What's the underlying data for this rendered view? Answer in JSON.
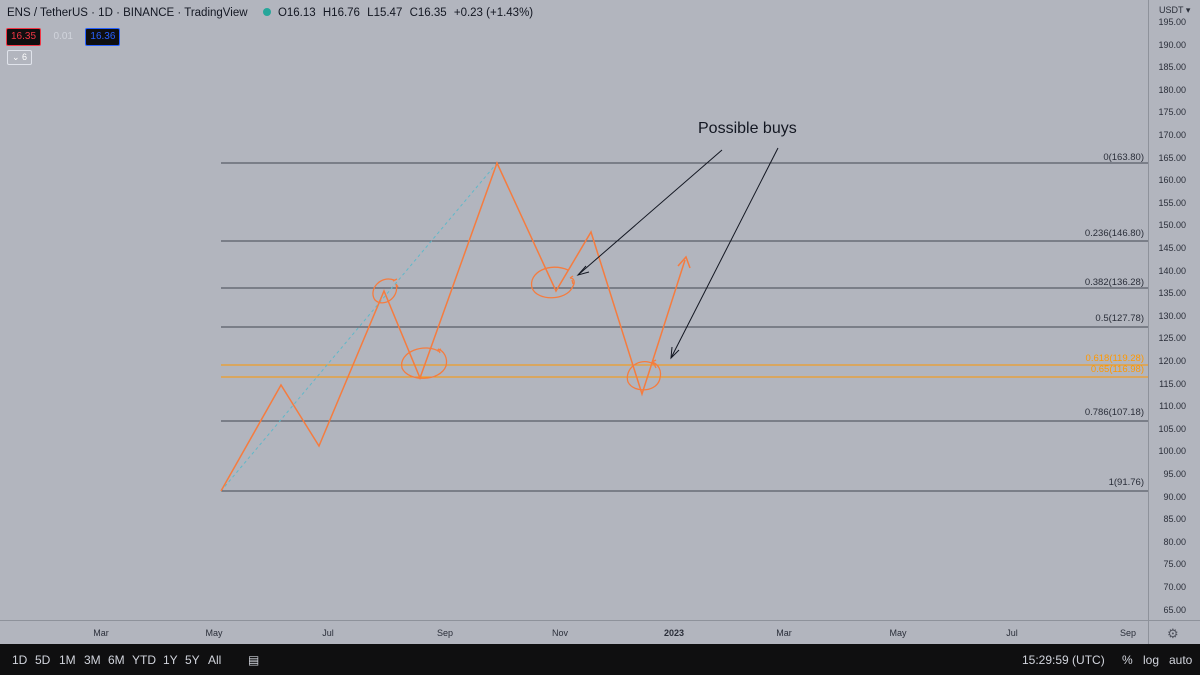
{
  "legend": {
    "symbol": "ENS / TetherUS · 1D · BINANCE · TradingView",
    "open": "O16.13",
    "high": "H16.76",
    "low": "L15.47",
    "close": "C16.35",
    "change": "+0.23 (+1.43%)",
    "status_color": "#26a69a"
  },
  "badges": {
    "sell": "16.35",
    "spread": "0.01",
    "buy": "16.36",
    "collapse": "⌄ 6"
  },
  "price_axis": {
    "currency": "USDT",
    "ticks": [
      "195.00",
      "190.00",
      "185.00",
      "180.00",
      "175.00",
      "170.00",
      "165.00",
      "160.00",
      "155.00",
      "150.00",
      "145.00",
      "140.00",
      "135.00",
      "130.00",
      "125.00",
      "120.00",
      "115.00",
      "110.00",
      "105.00",
      "100.00",
      "95.00",
      "90.00",
      "85.00",
      "80.00",
      "75.00",
      "70.00",
      "65.00"
    ]
  },
  "time_axis": {
    "ticks": [
      "Mar",
      "May",
      "Jul",
      "Sep",
      "Nov",
      "2023",
      "Mar",
      "May",
      "Jul",
      "Sep"
    ]
  },
  "fib_levels": [
    {
      "label": "0(163.80)"
    },
    {
      "label": "0.236(146.80)"
    },
    {
      "label": "0.382(136.28)"
    },
    {
      "label": "0.5(127.78)"
    },
    {
      "label": "0.618(119.28)"
    },
    {
      "label": "0.65(116.98)"
    },
    {
      "label": "0.786(107.18)"
    },
    {
      "label": "1(91.76)"
    }
  ],
  "annotation": "Possible buys",
  "bottom_bar": {
    "ranges": [
      "1D",
      "5D",
      "1M",
      "3M",
      "6M",
      "YTD",
      "1Y",
      "5Y",
      "All"
    ],
    "time": "15:29:59 (UTC)",
    "percent": "%",
    "log": "log",
    "auto": "auto"
  },
  "colors": {
    "background": "#b2b5be",
    "projection": "#f57c3f",
    "fib_gold": "#ff9800",
    "fib_line": "#434651"
  }
}
